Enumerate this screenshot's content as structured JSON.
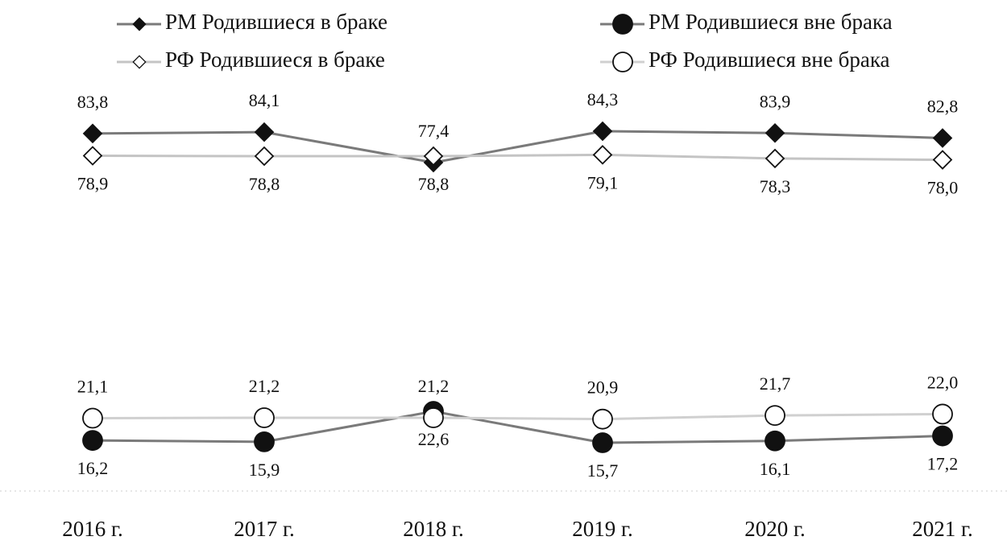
{
  "chart_data": {
    "type": "line",
    "categories": [
      "2016 г.",
      "2017 г.",
      "2018 г.",
      "2019 г.",
      "2020 г.",
      "2021 г."
    ],
    "series": [
      {
        "name": "РМ Родившиеся в браке",
        "color": "#7a7a7a",
        "marker": "diamond",
        "filled": true,
        "label_side": "above",
        "values": [
          83.8,
          84.1,
          77.4,
          84.3,
          83.9,
          82.8
        ],
        "value_labels": [
          "83,8",
          "84,1",
          "77,4",
          "84,3",
          "83,9",
          "82,8"
        ]
      },
      {
        "name": "РФ Родившиеся в браке",
        "color": "#c4c4c4",
        "marker": "diamond",
        "filled": false,
        "label_side": "below",
        "values": [
          78.9,
          78.8,
          78.8,
          79.1,
          78.3,
          78.0
        ],
        "value_labels": [
          "78,9",
          "78,8",
          "78,8",
          "79,1",
          "78,3",
          "78,0"
        ]
      },
      {
        "name": "РМ Родившиеся вне брака",
        "color": "#7a7a7a",
        "marker": "circle",
        "filled": true,
        "label_side": "below",
        "values": [
          16.2,
          15.9,
          22.6,
          15.7,
          16.1,
          17.2
        ],
        "value_labels": [
          "16,2",
          "15,9",
          "22,6",
          "15,7",
          "16,1",
          "17,2"
        ]
      },
      {
        "name": "РФ Родившиеся вне брака",
        "color": "#d0d0d0",
        "marker": "circle",
        "filled": false,
        "label_side": "above",
        "values": [
          21.1,
          21.2,
          21.2,
          20.9,
          21.7,
          22.0
        ],
        "value_labels": [
          "21,1",
          "21,2",
          "21,2",
          "20,9",
          "21,7",
          "22,0"
        ]
      }
    ]
  }
}
